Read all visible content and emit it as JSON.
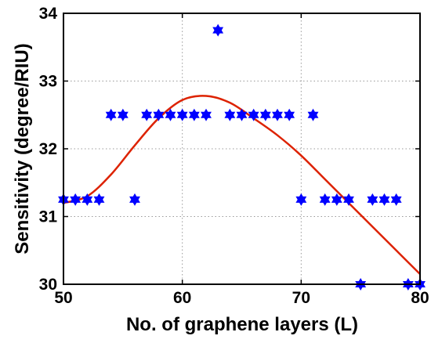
{
  "chart_data": {
    "type": "scatter",
    "xlabel": "No. of graphene layers (L)",
    "ylabel": "Sensitivity (degree/RIU)",
    "xlim": [
      50,
      80
    ],
    "ylim": [
      30,
      34
    ],
    "xticks": [
      50,
      60,
      70,
      80
    ],
    "yticks": [
      30,
      31,
      32,
      33,
      34
    ],
    "grid": true,
    "series": [
      {
        "marker": "star",
        "color": "#0000ff",
        "x": [
          50,
          51,
          52,
          53,
          54,
          55,
          56,
          57,
          58,
          59,
          60,
          61,
          62,
          63,
          64,
          65,
          66,
          67,
          68,
          69,
          70,
          71,
          72,
          73,
          74,
          75,
          76,
          77,
          78,
          79,
          80
        ],
        "y": [
          31.25,
          31.25,
          31.25,
          31.25,
          32.5,
          32.5,
          31.25,
          32.5,
          32.5,
          32.5,
          32.5,
          32.5,
          32.5,
          33.75,
          32.5,
          32.5,
          32.5,
          32.5,
          32.5,
          32.5,
          31.25,
          32.5,
          31.25,
          31.25,
          31.25,
          30,
          31.25,
          31.25,
          31.25,
          30,
          30
        ]
      },
      {
        "type": "line",
        "color": "#dd2200",
        "x": [
          50,
          52,
          54,
          56,
          58,
          60,
          62,
          64,
          66,
          68,
          70,
          72,
          74,
          76,
          78,
          80
        ],
        "y": [
          31.2,
          31.3,
          31.62,
          32.05,
          32.45,
          32.72,
          32.78,
          32.68,
          32.45,
          32.2,
          31.9,
          31.55,
          31.2,
          30.85,
          30.5,
          30.15
        ]
      }
    ]
  }
}
